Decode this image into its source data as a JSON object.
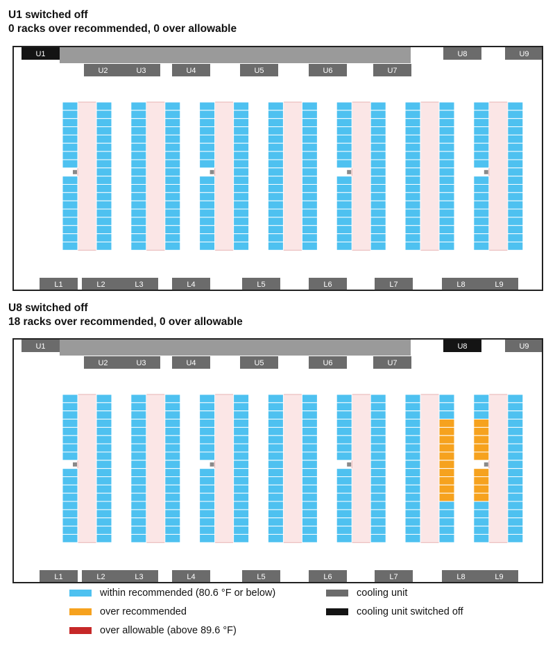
{
  "colors": {
    "within": "#4ec1f0",
    "over_recommended": "#f6a21e",
    "over_allowable": "#c62828",
    "cooling_unit": "#6b6b6b",
    "cooling_unit_off": "#141414",
    "hot_aisle": "#fbe6e6",
    "hot_aisle_edge": "#e7b3b3",
    "duct": "#9a9a9a",
    "sensor": "#8a8a8a"
  },
  "scenarios": [
    {
      "title": "U1 switched off",
      "summary": "0 racks over recommended, 0 over allowable",
      "switched_off_unit": "U1",
      "upper_units": [
        "U1",
        "U2",
        "U3",
        "U4",
        "U5",
        "U6",
        "U7",
        "U8",
        "U9"
      ],
      "lower_units": [
        "L1",
        "L2",
        "L3",
        "L4",
        "L5",
        "L6",
        "L7",
        "L8",
        "L9"
      ],
      "rows_per_column": 18,
      "sensor_gap_row": 9,
      "over_recommended": [],
      "over_allowable": []
    },
    {
      "title": "U8 switched off",
      "summary": "18 racks over recommended, 0 over allowable",
      "switched_off_unit": "U8",
      "upper_units": [
        "U1",
        "U2",
        "U3",
        "U4",
        "U5",
        "U6",
        "U7",
        "U8",
        "U9"
      ],
      "lower_units": [
        "L1",
        "L2",
        "L3",
        "L4",
        "L5",
        "L6",
        "L7",
        "L8",
        "L9"
      ],
      "rows_per_column": 18,
      "sensor_gap_row": 9,
      "over_recommended": [
        {
          "aisle": 6,
          "side": "right",
          "rows": [
            4,
            5,
            6,
            7,
            8,
            9,
            10,
            11,
            12,
            13
          ]
        },
        {
          "aisle": 7,
          "side": "left",
          "rows": [
            4,
            5,
            6,
            7,
            8,
            10,
            11,
            12,
            13
          ]
        }
      ],
      "over_allowable": []
    }
  ],
  "legend": [
    {
      "key": "within",
      "label": "within recommended (80.6 °F or below)"
    },
    {
      "key": "over_recommended",
      "label": "over recommended"
    },
    {
      "key": "over_allowable",
      "label": "over allowable (above 89.6 °F)"
    },
    {
      "key": "cooling_unit",
      "label": "cooling unit"
    },
    {
      "key": "cooling_unit_off",
      "label": "cooling unit switched off"
    }
  ]
}
